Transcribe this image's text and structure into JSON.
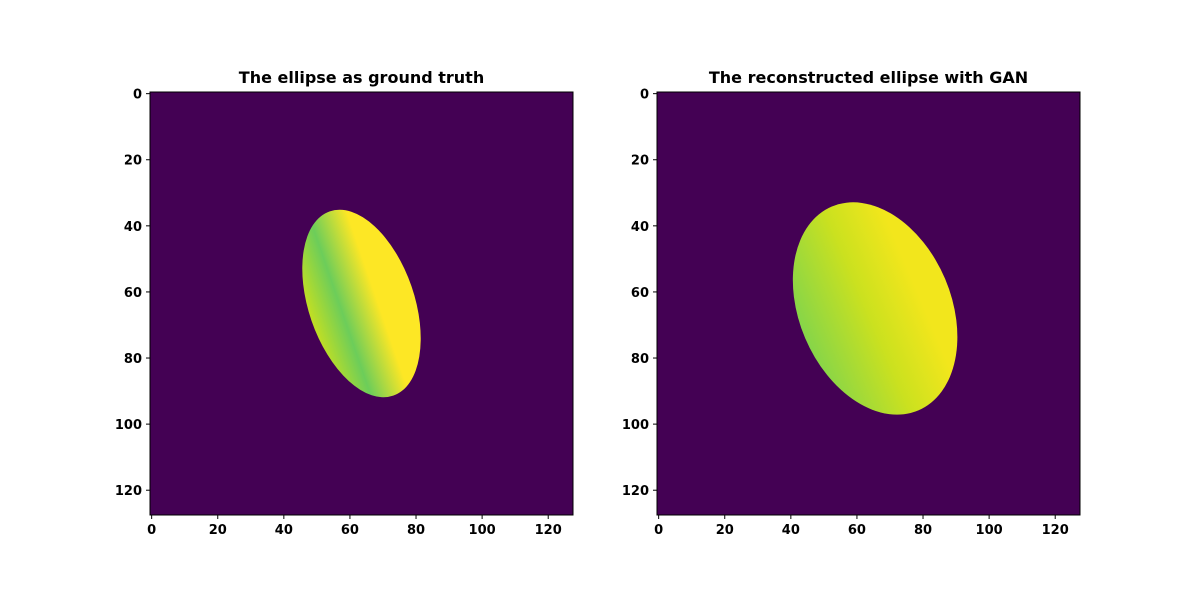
{
  "chart_data": [
    {
      "type": "heatmap",
      "title": "The ellipse as ground truth",
      "x_ticks": [
        0,
        20,
        40,
        60,
        80,
        100,
        120
      ],
      "y_ticks": [
        0,
        20,
        40,
        60,
        80,
        100,
        120
      ],
      "xlim": [
        -0.5,
        127.5
      ],
      "ylim": [
        127.5,
        -0.5
      ],
      "grid": false,
      "colormap": "viridis",
      "background_color": "#440154",
      "image_size": [
        128,
        128
      ],
      "shape": {
        "kind": "ellipse",
        "center_x": 63.5,
        "center_y": 63.5,
        "semi_axis_major": 29.5,
        "semi_axis_minor": 16,
        "tilt_deg": -19
      },
      "colors": {
        "bright": "#fde725",
        "light": "#c2df23",
        "mid": "#6ccd5a"
      }
    },
    {
      "type": "heatmap",
      "title": "The reconstructed ellipse with GAN",
      "x_ticks": [
        0,
        20,
        40,
        60,
        80,
        100,
        120
      ],
      "y_ticks": [
        0,
        20,
        40,
        60,
        80,
        100,
        120
      ],
      "xlim": [
        -0.5,
        127.5
      ],
      "ylim": [
        127.5,
        -0.5
      ],
      "grid": false,
      "colormap": "viridis",
      "background_color": "#440154",
      "image_size": [
        128,
        128
      ],
      "shape": {
        "kind": "ellipse",
        "center_x": 65.5,
        "center_y": 65,
        "semi_axis_major": 33.5,
        "semi_axis_minor": 23,
        "tilt_deg": -23
      },
      "colors": {
        "bright": "#f2e61c",
        "light": "#cbe11f",
        "mid": "#86d549"
      }
    }
  ]
}
